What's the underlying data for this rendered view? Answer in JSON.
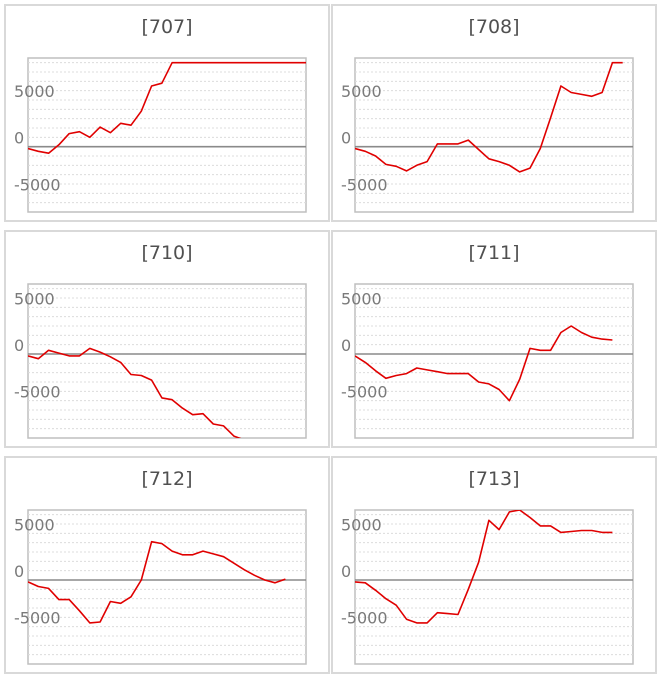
{
  "chart_data": [
    {
      "type": "line",
      "title": "[707]",
      "ylim": [
        -7000,
        9500
      ],
      "yticks": [
        5000,
        0,
        -5000
      ],
      "grid": true,
      "color": "#e00000",
      "x": [
        0,
        1,
        2,
        3,
        4,
        5,
        6,
        7,
        8,
        9,
        10,
        11,
        12,
        13,
        14,
        15,
        16,
        17,
        18,
        19,
        20,
        21,
        22,
        23,
        24,
        25,
        26,
        27
      ],
      "values": [
        -200,
        -500,
        -700,
        200,
        1400,
        1600,
        1000,
        2100,
        1500,
        2500,
        2300,
        3800,
        6500,
        6800,
        9000,
        9000,
        9000,
        9000,
        9000,
        9000,
        9000,
        9000,
        9000,
        9000,
        9000,
        9000,
        9000,
        9000
      ]
    },
    {
      "type": "line",
      "title": "[708]",
      "ylim": [
        -7000,
        9500
      ],
      "yticks": [
        5000,
        0,
        -5000
      ],
      "grid": true,
      "color": "#e00000",
      "x": [
        0,
        1,
        2,
        3,
        4,
        5,
        6,
        7,
        8,
        9,
        10,
        11,
        12,
        13,
        14,
        15,
        16,
        17,
        18,
        19,
        20,
        21,
        22,
        23,
        24,
        25,
        26
      ],
      "values": [
        -200,
        -500,
        -1000,
        -1900,
        -2100,
        -2600,
        -2000,
        -1600,
        300,
        300,
        300,
        700,
        -300,
        -1300,
        -1600,
        -2000,
        -2700,
        -2300,
        -200,
        3100,
        6500,
        5800,
        5600,
        5400,
        5800,
        9000,
        9000
      ]
    },
    {
      "type": "line",
      "title": "[710]",
      "ylim": [
        -9000,
        7500
      ],
      "yticks": [
        5000,
        0,
        -5000
      ],
      "grid": true,
      "color": "#e00000",
      "x": [
        0,
        1,
        2,
        3,
        4,
        5,
        6,
        7,
        8,
        9,
        10,
        11,
        12,
        13,
        14,
        15,
        16,
        17,
        18,
        19,
        20,
        21,
        22
      ],
      "values": [
        -200,
        -500,
        400,
        100,
        -200,
        -200,
        600,
        200,
        -300,
        -900,
        -2200,
        -2300,
        -2800,
        -4700,
        -4900,
        -5800,
        -6500,
        -6400,
        -7500,
        -7700,
        -8800,
        -9200,
        -9300
      ]
    },
    {
      "type": "line",
      "title": "[711]",
      "ylim": [
        -9000,
        7500
      ],
      "yticks": [
        5000,
        0,
        -5000
      ],
      "grid": true,
      "color": "#e00000",
      "x": [
        0,
        1,
        2,
        3,
        4,
        5,
        6,
        7,
        8,
        9,
        10,
        11,
        12,
        13,
        14,
        15,
        16,
        17,
        18,
        19,
        20,
        21,
        22,
        23,
        24,
        25
      ],
      "values": [
        -200,
        -900,
        -1800,
        -2600,
        -2300,
        -2100,
        -1500,
        -1700,
        -1900,
        -2100,
        -2100,
        -2100,
        -3000,
        -3200,
        -3800,
        -5000,
        -2700,
        600,
        400,
        400,
        2300,
        3000,
        2300,
        1800,
        1600,
        1500
      ]
    },
    {
      "type": "line",
      "title": "[712]",
      "ylim": [
        -9000,
        7500
      ],
      "yticks": [
        5000,
        0,
        -5000
      ],
      "grid": true,
      "color": "#e00000",
      "x": [
        0,
        1,
        2,
        3,
        4,
        5,
        6,
        7,
        8,
        9,
        10,
        11,
        12,
        13,
        14,
        15,
        16,
        17,
        18,
        19,
        20,
        21,
        22,
        23,
        24,
        25
      ],
      "values": [
        -200,
        -700,
        -900,
        -2100,
        -2100,
        -3300,
        -4600,
        -4500,
        -2300,
        -2500,
        -1800,
        0,
        4100,
        3900,
        3100,
        2700,
        2700,
        3100,
        2800,
        2500,
        1800,
        1100,
        500,
        0,
        -300,
        100
      ]
    },
    {
      "type": "line",
      "title": "[713]",
      "ylim": [
        -9000,
        7500
      ],
      "yticks": [
        5000,
        0,
        -5000
      ],
      "grid": true,
      "color": "#e00000",
      "x": [
        0,
        1,
        2,
        3,
        4,
        5,
        6,
        7,
        8,
        9,
        10,
        11,
        12,
        13,
        14,
        15,
        16,
        17,
        18,
        19,
        20,
        21,
        22,
        23,
        24,
        25
      ],
      "values": [
        -200,
        -300,
        -1100,
        -2000,
        -2700,
        -4200,
        -4600,
        -4600,
        -3500,
        -3600,
        -3700,
        -1000,
        1900,
        6400,
        5400,
        7300,
        7500,
        6700,
        5800,
        5800,
        5100,
        5200,
        5300,
        5300,
        5100,
        5100
      ]
    }
  ]
}
